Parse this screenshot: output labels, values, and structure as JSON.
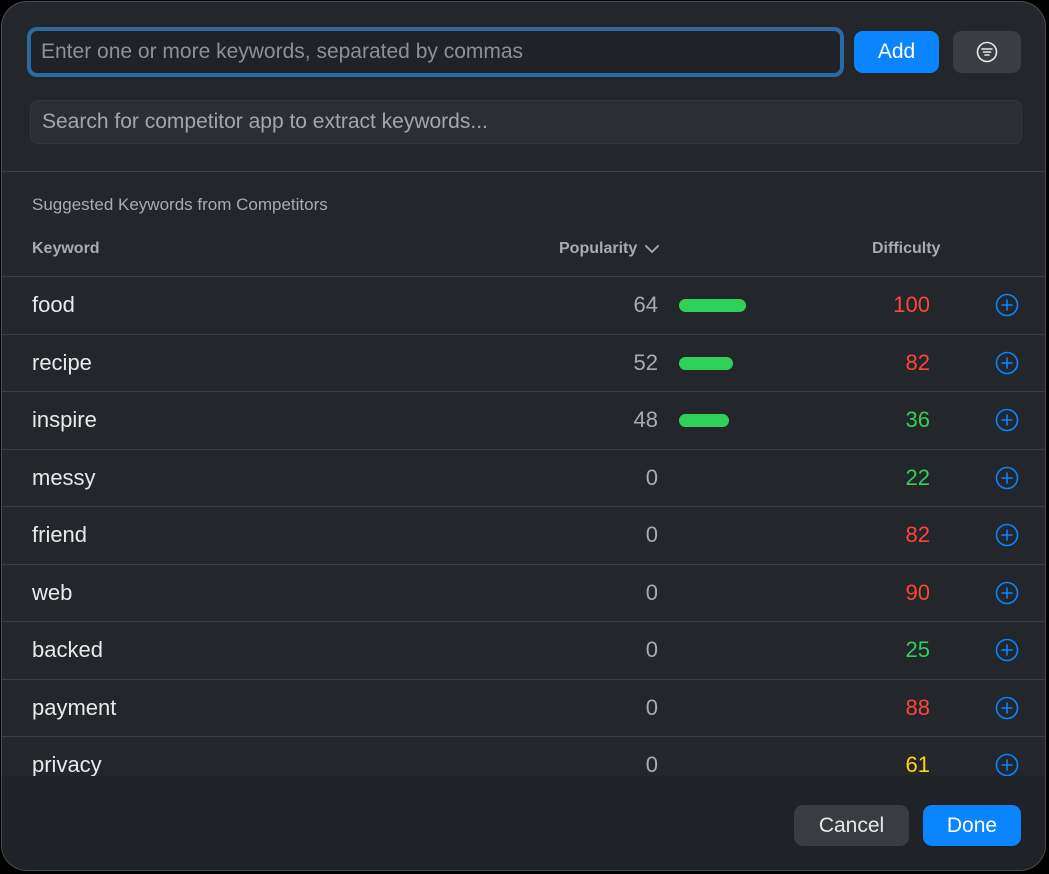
{
  "keyword_input": {
    "placeholder": "Enter one or more keywords, separated by commas",
    "value": ""
  },
  "add_button": {
    "label": "Add"
  },
  "filter_button": {
    "icon": "filter-lines-icon"
  },
  "competitor_search": {
    "placeholder": "Search for competitor app to extract keywords...",
    "value": ""
  },
  "section": {
    "title": "Suggested Keywords from Competitors"
  },
  "columns": {
    "keyword": "Keyword",
    "popularity": "Popularity",
    "difficulty": "Difficulty",
    "sort_icon": "chevron-down-icon"
  },
  "colors": {
    "accent": "#0a84ff",
    "bar": "#30d158",
    "difficulty_high": "#ff453a",
    "difficulty_medium": "#ffd60a",
    "difficulty_low": "#30d158"
  },
  "rows": [
    {
      "keyword": "food",
      "popularity": "64",
      "popularity_fraction": 0.64,
      "difficulty": "100",
      "difficulty_level": "high"
    },
    {
      "keyword": "recipe",
      "popularity": "52",
      "popularity_fraction": 0.52,
      "difficulty": "82",
      "difficulty_level": "high"
    },
    {
      "keyword": "inspire",
      "popularity": "48",
      "popularity_fraction": 0.48,
      "difficulty": "36",
      "difficulty_level": "low"
    },
    {
      "keyword": "messy",
      "popularity": "0",
      "popularity_fraction": 0,
      "difficulty": "22",
      "difficulty_level": "low"
    },
    {
      "keyword": "friend",
      "popularity": "0",
      "popularity_fraction": 0,
      "difficulty": "82",
      "difficulty_level": "high"
    },
    {
      "keyword": "web",
      "popularity": "0",
      "popularity_fraction": 0,
      "difficulty": "90",
      "difficulty_level": "high"
    },
    {
      "keyword": "backed",
      "popularity": "0",
      "popularity_fraction": 0,
      "difficulty": "25",
      "difficulty_level": "low"
    },
    {
      "keyword": "payment",
      "popularity": "0",
      "popularity_fraction": 0,
      "difficulty": "88",
      "difficulty_level": "high"
    },
    {
      "keyword": "privacy",
      "popularity": "0",
      "popularity_fraction": 0,
      "difficulty": "61",
      "difficulty_level": "medium"
    }
  ],
  "footer": {
    "cancel_label": "Cancel",
    "done_label": "Done"
  }
}
